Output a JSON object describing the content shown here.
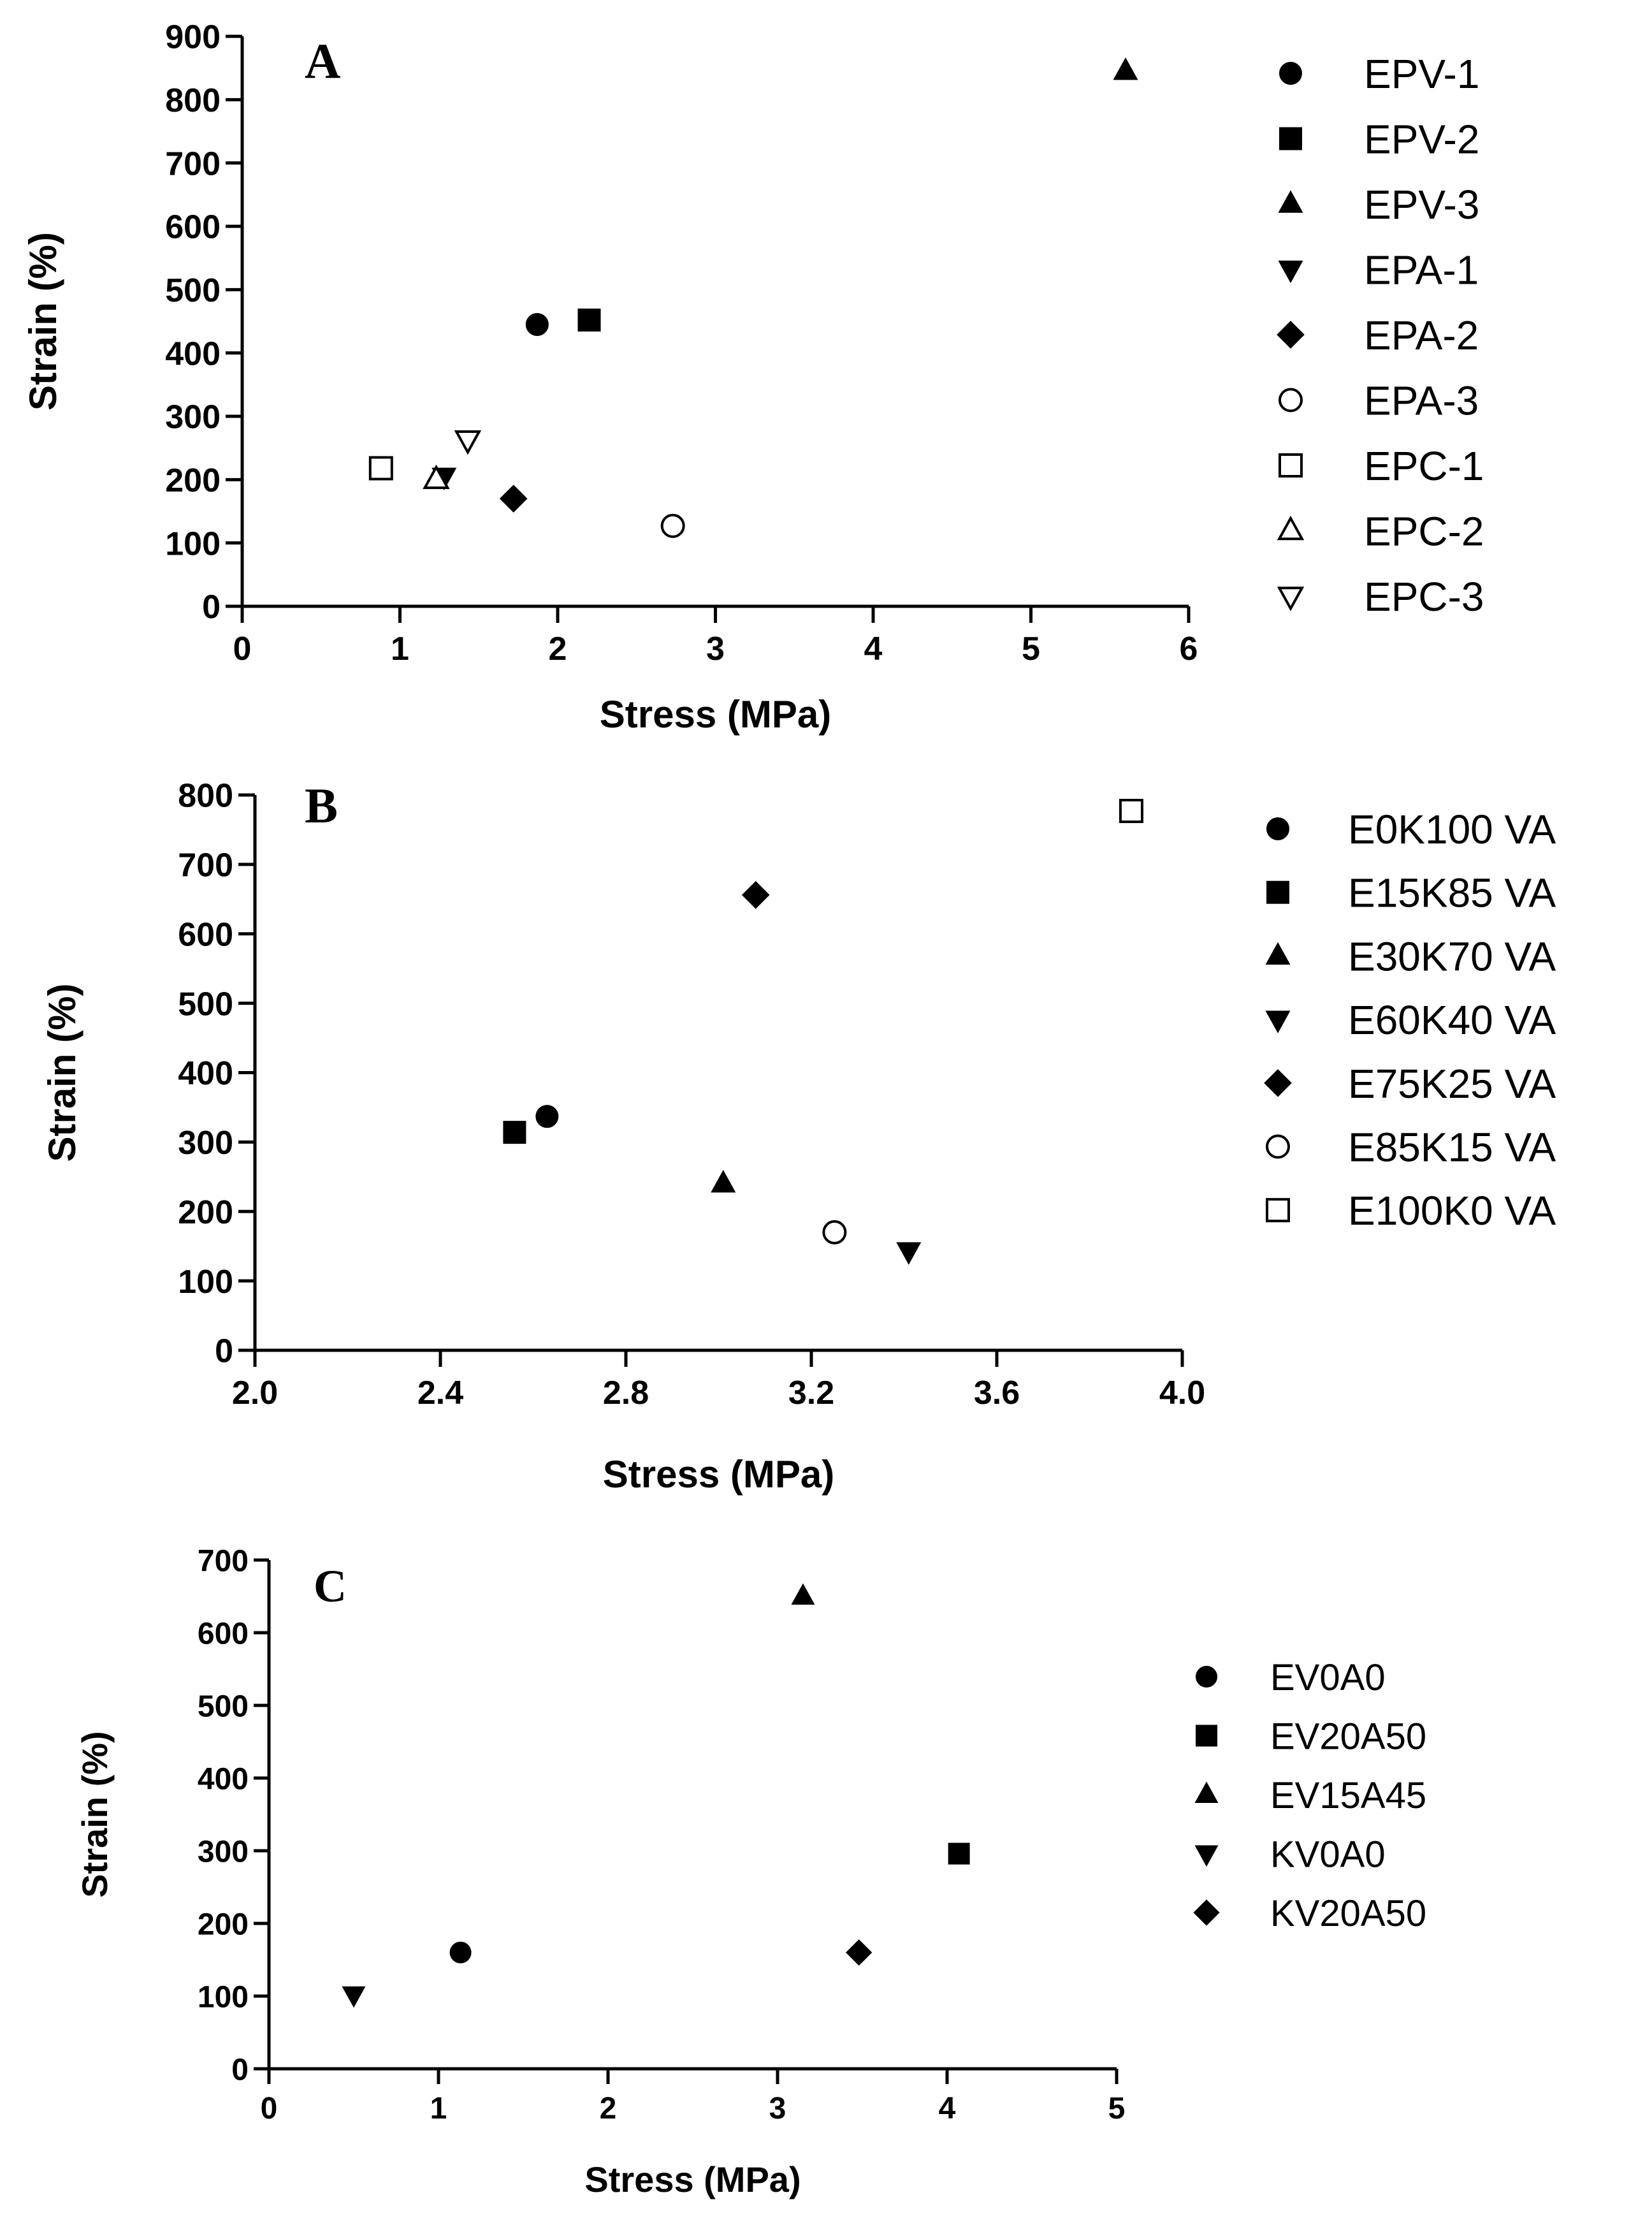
{
  "chart_data": [
    {
      "type": "scatter",
      "panel_label": "A",
      "xlabel": "Stress (MPa)",
      "ylabel": "Strain (%)",
      "xlim": [
        0,
        6
      ],
      "ylim": [
        0,
        900
      ],
      "xticks": [
        0,
        1,
        2,
        3,
        4,
        5,
        6
      ],
      "yticks": [
        0,
        100,
        200,
        300,
        400,
        500,
        600,
        700,
        800,
        900
      ],
      "xtick_labels": [
        "0",
        "1",
        "2",
        "3",
        "4",
        "5",
        "6"
      ],
      "ytick_labels": [
        "0",
        "100",
        "200",
        "300",
        "400",
        "500",
        "600",
        "700",
        "800",
        "900"
      ],
      "grid": false,
      "legend_position": "right",
      "series": [
        {
          "name": "EPV-1",
          "marker": "circle",
          "filled": true,
          "x": [
            1.87
          ],
          "y": [
            445
          ]
        },
        {
          "name": "EPV-2",
          "marker": "square",
          "filled": true,
          "x": [
            2.2
          ],
          "y": [
            452
          ]
        },
        {
          "name": "EPV-3",
          "marker": "triangle-up",
          "filled": true,
          "x": [
            5.6
          ],
          "y": [
            845
          ]
        },
        {
          "name": "EPA-1",
          "marker": "triangle-down",
          "filled": true,
          "x": [
            1.28
          ],
          "y": [
            205
          ]
        },
        {
          "name": "EPA-2",
          "marker": "diamond",
          "filled": true,
          "x": [
            1.72
          ],
          "y": [
            170
          ]
        },
        {
          "name": "EPA-3",
          "marker": "circle",
          "filled": false,
          "x": [
            2.73
          ],
          "y": [
            127
          ]
        },
        {
          "name": "EPC-1",
          "marker": "square",
          "filled": false,
          "x": [
            0.88
          ],
          "y": [
            218
          ]
        },
        {
          "name": "EPC-2",
          "marker": "triangle-up",
          "filled": false,
          "x": [
            1.23
          ],
          "y": [
            200
          ]
        },
        {
          "name": "EPC-3",
          "marker": "triangle-down",
          "filled": false,
          "x": [
            1.43
          ],
          "y": [
            263
          ]
        }
      ]
    },
    {
      "type": "scatter",
      "panel_label": "B",
      "xlabel": "Stress (MPa)",
      "ylabel": "Strain (%)",
      "xlim": [
        2.0,
        4.0
      ],
      "ylim": [
        0,
        800
      ],
      "xticks": [
        2.0,
        2.4,
        2.8,
        3.2,
        3.6,
        4.0
      ],
      "yticks": [
        0,
        100,
        200,
        300,
        400,
        500,
        600,
        700,
        800
      ],
      "xtick_labels": [
        "2.0",
        "2.4",
        "2.8",
        "3.2",
        "3.6",
        "4.0"
      ],
      "ytick_labels": [
        "0",
        "100",
        "200",
        "300",
        "400",
        "500",
        "600",
        "700",
        "800"
      ],
      "grid": false,
      "legend_position": "right",
      "series": [
        {
          "name": "E0K100 VA",
          "marker": "circle",
          "filled": true,
          "x": [
            2.63
          ],
          "y": [
            337
          ]
        },
        {
          "name": "E15K85 VA",
          "marker": "square",
          "filled": true,
          "x": [
            2.56
          ],
          "y": [
            314
          ]
        },
        {
          "name": "E30K70 VA",
          "marker": "triangle-up",
          "filled": true,
          "x": [
            3.01
          ],
          "y": [
            240
          ]
        },
        {
          "name": "E60K40 VA",
          "marker": "triangle-down",
          "filled": true,
          "x": [
            3.41
          ],
          "y": [
            143
          ]
        },
        {
          "name": "E75K25 VA",
          "marker": "diamond",
          "filled": true,
          "x": [
            3.08
          ],
          "y": [
            656
          ]
        },
        {
          "name": "E85K15 VA",
          "marker": "circle",
          "filled": false,
          "x": [
            3.25
          ],
          "y": [
            170
          ]
        },
        {
          "name": "E100K0 VA",
          "marker": "square",
          "filled": false,
          "x": [
            3.89
          ],
          "y": [
            777
          ]
        }
      ]
    },
    {
      "type": "scatter",
      "panel_label": "C",
      "xlabel": "Stress (MPa)",
      "ylabel": "Strain (%)",
      "xlim": [
        0,
        5
      ],
      "ylim": [
        0,
        700
      ],
      "xticks": [
        0,
        1,
        2,
        3,
        4,
        5
      ],
      "yticks": [
        0,
        100,
        200,
        300,
        400,
        500,
        600,
        700
      ],
      "xtick_labels": [
        "0",
        "1",
        "2",
        "3",
        "4",
        "5"
      ],
      "ytick_labels": [
        "0",
        "100",
        "200",
        "300",
        "400",
        "500",
        "600",
        "700"
      ],
      "grid": false,
      "legend_position": "right",
      "series": [
        {
          "name": "EV0A0",
          "marker": "circle",
          "filled": true,
          "x": [
            1.13
          ],
          "y": [
            160
          ]
        },
        {
          "name": "EV20A50",
          "marker": "square",
          "filled": true,
          "x": [
            4.07
          ],
          "y": [
            296
          ]
        },
        {
          "name": "EV15A45",
          "marker": "triangle-up",
          "filled": true,
          "x": [
            3.15
          ],
          "y": [
            650
          ]
        },
        {
          "name": "KV0A0",
          "marker": "triangle-down",
          "filled": true,
          "x": [
            0.5
          ],
          "y": [
            102
          ]
        },
        {
          "name": "KV20A50",
          "marker": "diamond",
          "filled": true,
          "x": [
            3.48
          ],
          "y": [
            160
          ]
        }
      ]
    }
  ]
}
